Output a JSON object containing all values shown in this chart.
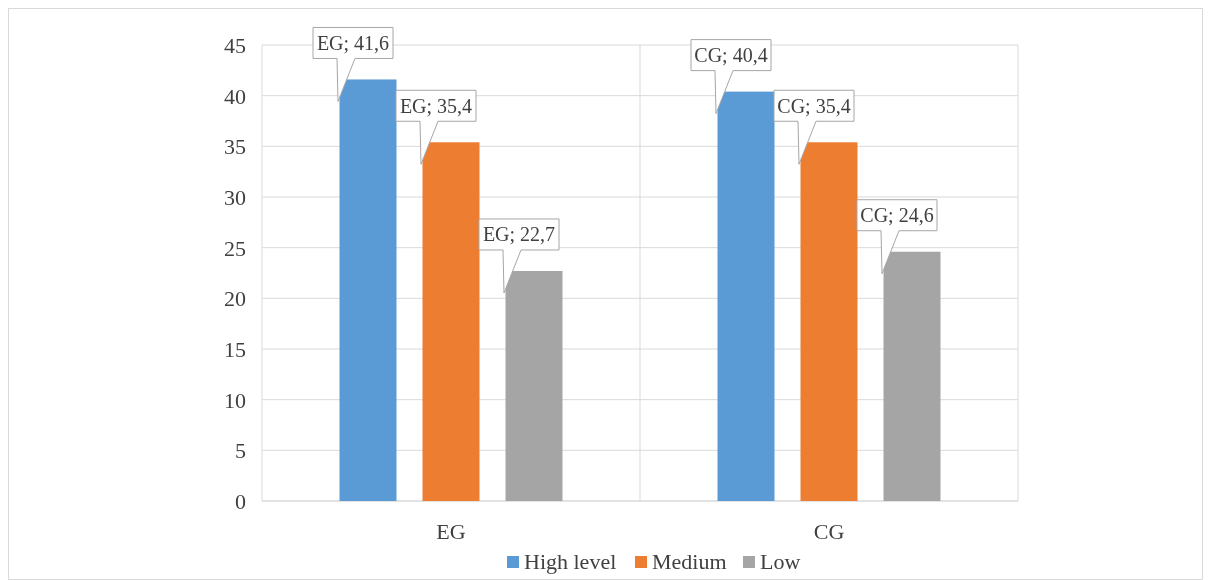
{
  "chart_data": {
    "type": "bar",
    "categories": [
      "EG",
      "CG"
    ],
    "series": [
      {
        "name": "High level",
        "color": "#5b9bd5",
        "values": [
          41.6,
          40.4
        ],
        "value_labels": [
          "EG; 41,6",
          "CG; 40,4"
        ]
      },
      {
        "name": "Medium",
        "color": "#ed7d31",
        "values": [
          35.4,
          35.4
        ],
        "value_labels": [
          "EG; 35,4",
          "CG; 35,4"
        ]
      },
      {
        "name": "Low",
        "color": "#a5a5a5",
        "values": [
          22.7,
          24.6
        ],
        "value_labels": [
          "EG; 22,7",
          "CG; 24,6"
        ]
      }
    ],
    "ylim": [
      0,
      45
    ],
    "yticks": [
      0,
      5,
      10,
      15,
      20,
      25,
      30,
      35,
      40,
      45
    ],
    "grid": "y",
    "legend": "bottom"
  }
}
